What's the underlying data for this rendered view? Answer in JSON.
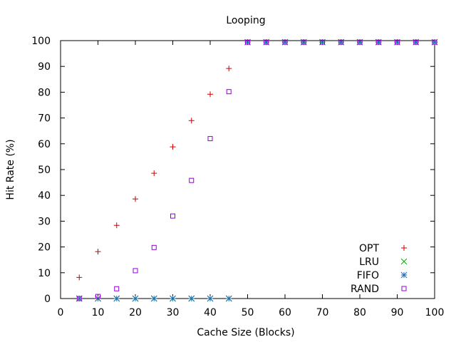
{
  "chart_data": {
    "type": "scatter",
    "title": "Looping",
    "xlabel": "Cache Size (Blocks)",
    "ylabel": "Hit Rate (%)",
    "xlim": [
      0,
      100
    ],
    "ylim": [
      0,
      100
    ],
    "x_ticks": [
      0,
      10,
      20,
      30,
      40,
      50,
      60,
      70,
      80,
      90,
      100
    ],
    "y_ticks": [
      0,
      10,
      20,
      30,
      40,
      50,
      60,
      70,
      80,
      90,
      100
    ],
    "grid": false,
    "legend_position": "bottom-right",
    "x": [
      5,
      10,
      15,
      20,
      25,
      30,
      35,
      40,
      45,
      50,
      55,
      60,
      65,
      70,
      75,
      80,
      85,
      90,
      95,
      100
    ],
    "series": [
      {
        "name": "OPT",
        "marker": "plus",
        "color": "#cc0000",
        "values": [
          8.2,
          18.2,
          28.4,
          38.6,
          48.6,
          58.8,
          69.0,
          79.2,
          89.2,
          99.4,
          99.4,
          99.4,
          99.4,
          99.4,
          99.4,
          99.4,
          99.4,
          99.4,
          99.4,
          99.4
        ]
      },
      {
        "name": "LRU",
        "marker": "cross",
        "color": "#00b000",
        "values": [
          0,
          0,
          0,
          0,
          0,
          0,
          0,
          0,
          0,
          99.4,
          99.4,
          99.4,
          99.4,
          99.4,
          99.4,
          99.4,
          99.4,
          99.4,
          99.4,
          99.4
        ]
      },
      {
        "name": "FIFO",
        "marker": "star",
        "color": "#1f6fb4",
        "values": [
          0,
          0,
          0,
          0,
          0,
          0,
          0,
          0,
          0,
          99.4,
          99.4,
          99.4,
          99.4,
          99.4,
          99.4,
          99.4,
          99.4,
          99.4,
          99.4,
          99.4
        ]
      },
      {
        "name": "RAND",
        "marker": "square",
        "color": "#9400d3",
        "values": [
          0,
          0.8,
          3.8,
          10.8,
          19.8,
          32.0,
          45.8,
          62.0,
          80.2,
          99.4,
          99.4,
          99.4,
          99.4,
          99.4,
          99.4,
          99.4,
          99.4,
          99.4,
          99.4,
          99.4
        ]
      }
    ]
  }
}
